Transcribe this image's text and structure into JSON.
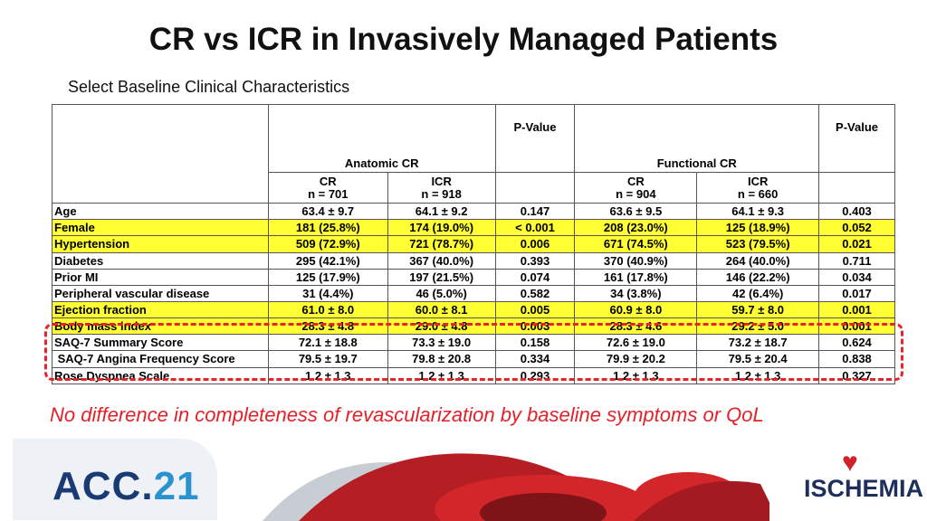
{
  "title": "CR vs ICR in Invasively Managed Patients",
  "subtitle": "Select Baseline Clinical Characteristics",
  "groups": {
    "anatomic": "Anatomic CR",
    "functional": "Functional CR",
    "pvalue": "P-Value"
  },
  "cols": [
    {
      "name": "CR",
      "n": "n = 701"
    },
    {
      "name": "ICR",
      "n": "n = 918"
    },
    {
      "name": "CR",
      "n": "n = 904"
    },
    {
      "name": "ICR",
      "n": "n = 660"
    }
  ],
  "rows": [
    {
      "label": "Age",
      "v": [
        "63.4 ± 9.7",
        "64.1 ± 9.2",
        "0.147",
        "63.6 ± 9.5",
        "64.1 ± 9.3",
        "0.403"
      ]
    },
    {
      "label": "Female",
      "v": [
        "181 (25.8%)",
        "174 (19.0%)",
        "< 0.001",
        "208 (23.0%)",
        "125 (18.9%)",
        "0.052"
      ]
    },
    {
      "label": "Hypertension",
      "v": [
        "509 (72.9%)",
        "721 (78.7%)",
        "0.006",
        "671 (74.5%)",
        "523 (79.5%)",
        "0.021"
      ]
    },
    {
      "label": "Diabetes",
      "v": [
        "295 (42.1%)",
        "367 (40.0%)",
        "0.393",
        "370 (40.9%)",
        "264 (40.0%)",
        "0.711"
      ]
    },
    {
      "label": "Prior MI",
      "v": [
        "125 (17.9%)",
        "197 (21.5%)",
        "0.074",
        "161 (17.8%)",
        "146 (22.2%)",
        "0.034"
      ]
    },
    {
      "label": "Peripheral vascular disease",
      "v": [
        "31 (4.4%)",
        "46 (5.0%)",
        "0.582",
        "34 (3.8%)",
        "42 (6.4%)",
        "0.017"
      ]
    },
    {
      "label": "Ejection fraction",
      "v": [
        "61.0 ± 8.0",
        "60.0 ± 8.1",
        "0.005",
        "60.9 ± 8.0",
        "59.7 ± 8.0",
        "0.001"
      ]
    },
    {
      "label": "Body mass index",
      "v": [
        "28.3 ± 4.8",
        "29.0 ± 4.8",
        "0.003",
        "28.3 ± 4.6",
        "29.2 ± 5.0",
        "0.001"
      ]
    },
    {
      "label": "SAQ-7 Summary Score",
      "v": [
        "72.1 ± 18.8",
        "73.3 ± 19.0",
        "0.158",
        "72.6 ± 19.0",
        "73.2 ± 18.7",
        "0.624"
      ]
    },
    {
      "label": " SAQ-7 Angina Frequency Score",
      "v": [
        "79.5 ± 19.7",
        "79.8 ± 20.8",
        "0.334",
        "79.9 ± 20.2",
        "79.5 ± 20.4",
        "0.838"
      ]
    },
    {
      "label": "Rose Dyspnea Scale",
      "v": [
        "1.2 ± 1.3",
        "1.2 ± 1.3",
        "0.293",
        "1.2 ± 1.3",
        "1.2 ± 1.3",
        "0.327"
      ]
    }
  ],
  "note": "No difference in completeness of revascularization by baseline symptoms or QoL",
  "logo": {
    "acc_prefix": "ACC.",
    "acc_num": "21",
    "ischemia": "ISCHEMIA"
  },
  "colors": {
    "highlight": "#ffff33",
    "accent_red": "#e52029",
    "acc_blue": "#1a3a73"
  }
}
